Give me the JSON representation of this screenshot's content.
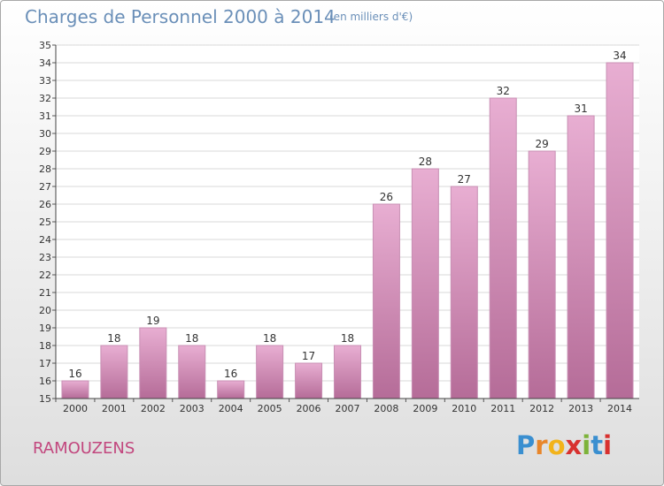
{
  "header": {
    "title": "Charges de Personnel 2000 à 2014",
    "unit_note": "(en milliers d'€)"
  },
  "footer": {
    "commune": "RAMOUZENS",
    "logo_text": "Proxiti"
  },
  "colors": {
    "title": "#6a8fb8",
    "commune": "#c2477e",
    "bar_light": "#e8aed2",
    "bar_dark": "#b56c98",
    "bar_edge": "#c890b4"
  },
  "chart_data": {
    "type": "bar",
    "title": "Charges de Personnel 2000 à 2014",
    "subtitle": "(en milliers d'€)",
    "categories": [
      "2000",
      "2001",
      "2002",
      "2003",
      "2004",
      "2005",
      "2006",
      "2007",
      "2008",
      "2009",
      "2010",
      "2011",
      "2012",
      "2013",
      "2014"
    ],
    "values": [
      16,
      18,
      19,
      18,
      16,
      18,
      17,
      18,
      26,
      28,
      27,
      32,
      29,
      31,
      34
    ],
    "ylim": [
      15,
      35
    ],
    "yticks": [
      15,
      16,
      17,
      18,
      19,
      20,
      21,
      22,
      23,
      24,
      25,
      26,
      27,
      28,
      29,
      30,
      31,
      32,
      33,
      34,
      35
    ],
    "grid": "horizontal",
    "data_labels": true
  }
}
